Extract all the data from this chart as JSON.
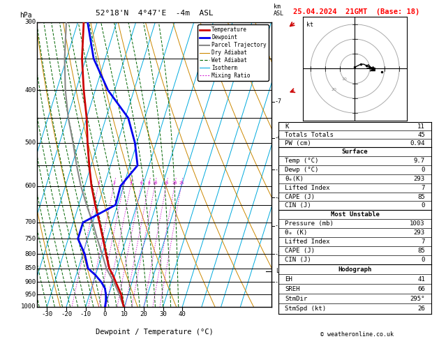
{
  "title_left": "52°18'N  4°47'E  -4m  ASL",
  "title_right": "25.04.2024  21GMT  (Base: 18)",
  "xlabel": "Dewpoint / Temperature (°C)",
  "ylabel_left": "hPa",
  "color_temp": "#cc0000",
  "color_dewp": "#0000ee",
  "color_parcel": "#888888",
  "color_dry_adiabat": "#cc8800",
  "color_wet_adiabat": "#006600",
  "color_isotherm": "#00aadd",
  "color_mixing": "#cc00cc",
  "color_background": "#ffffff",
  "legend_items": [
    "Temperature",
    "Dewpoint",
    "Parcel Trajectory",
    "Dry Adiabat",
    "Wet Adiabat",
    "Isotherm",
    "Mixing Ratio"
  ],
  "temp_profile_p": [
    1000,
    975,
    950,
    925,
    900,
    875,
    850,
    800,
    750,
    700,
    650,
    600,
    550,
    500,
    450,
    400,
    350,
    300
  ],
  "temp_profile_t": [
    9.7,
    8.0,
    6.5,
    4.0,
    1.5,
    -1.0,
    -4.0,
    -8.0,
    -12.0,
    -16.5,
    -21.5,
    -26.5,
    -31.0,
    -35.5,
    -40.0,
    -46.0,
    -52.0,
    -57.0
  ],
  "dewp_profile_p": [
    1000,
    975,
    950,
    925,
    900,
    875,
    850,
    800,
    750,
    700,
    650,
    600,
    550,
    500,
    450,
    400,
    350,
    300
  ],
  "dewp_profile_t": [
    0.0,
    -0.5,
    -1.5,
    -3.0,
    -6.0,
    -10.0,
    -15.0,
    -19.0,
    -25.0,
    -25.0,
    -11.0,
    -11.5,
    -6.0,
    -11.0,
    -18.5,
    -33.5,
    -46.0,
    -55.0
  ],
  "parcel_profile_p": [
    1000,
    975,
    950,
    925,
    900,
    875,
    850,
    800,
    750,
    700,
    650,
    600,
    550,
    500,
    450,
    400,
    350,
    300
  ],
  "parcel_profile_t": [
    9.7,
    7.5,
    5.5,
    3.0,
    0.5,
    -2.5,
    -5.5,
    -10.0,
    -15.0,
    -20.0,
    -26.0,
    -32.0,
    -37.5,
    -43.0,
    -49.5,
    -55.5,
    -61.0,
    -66.0
  ],
  "lcl_pressure": 860,
  "mixing_ratio_values": [
    1,
    2,
    3,
    4,
    6,
    8,
    10,
    15,
    20,
    25
  ],
  "km_ticks": [
    1,
    2,
    3,
    4,
    5,
    6,
    7
  ],
  "km_pressures": [
    900,
    800,
    710,
    630,
    560,
    490,
    420
  ],
  "stats_K": 11,
  "stats_TT": 45,
  "stats_PW": "0.94",
  "sfc_temp": "9.7",
  "sfc_dewp": "0",
  "sfc_theta_e": "293",
  "sfc_lifted": "7",
  "sfc_cape": "85",
  "sfc_cin": "0",
  "mu_pressure": "1003",
  "mu_theta_e": "293",
  "mu_lifted": "7",
  "mu_cape": "85",
  "mu_cin": "0",
  "hodo_eh": "41",
  "hodo_sreh": "66",
  "hodo_stmdir": "295°",
  "hodo_stmspd": "26",
  "website": "© weatheronline.co.uk"
}
